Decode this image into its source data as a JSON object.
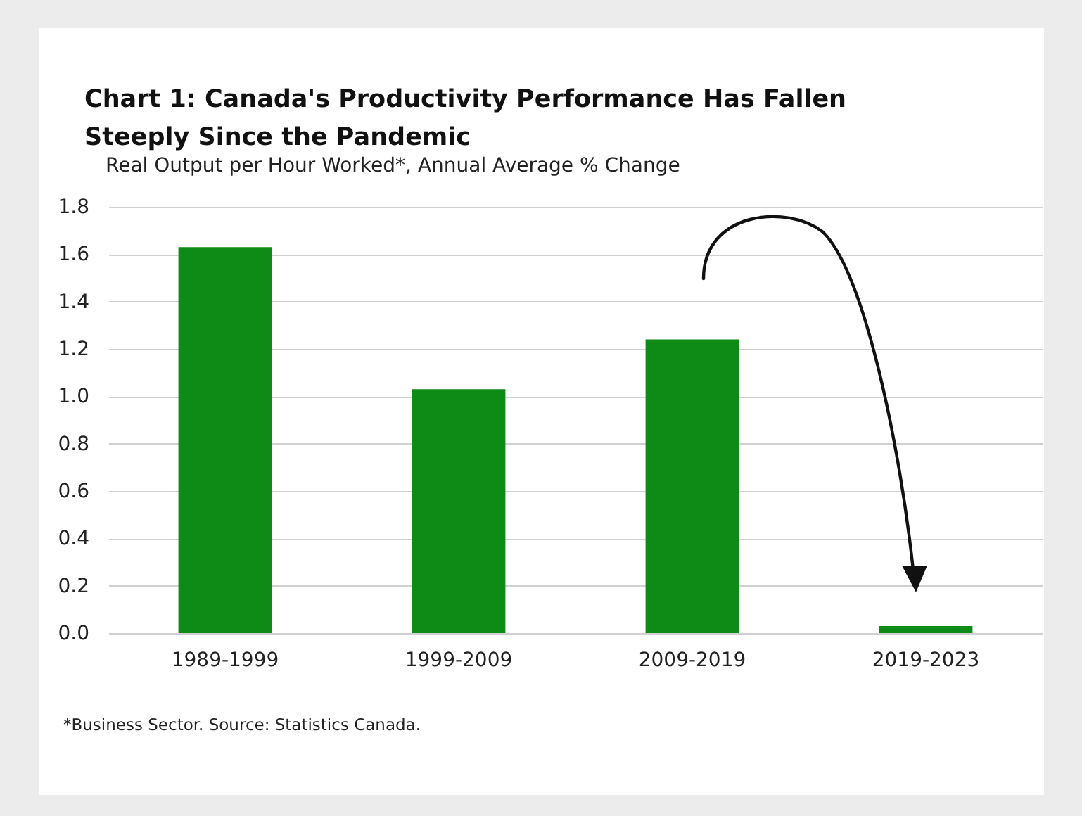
{
  "chart_data": {
    "type": "bar",
    "title": "Chart 1: Canada's Productivity Performance Has Fallen Steeply Since the Pandemic",
    "subtitle": "Real Output per Hour Worked*, Annual Average % Change",
    "categories": [
      "1989-1999",
      "1999-2009",
      "2009-2019",
      "2019-2023"
    ],
    "values": [
      1.63,
      1.03,
      1.24,
      0.03
    ],
    "color": "#0e8a16",
    "ylim": [
      0,
      1.8
    ],
    "yticks": [
      {
        "value": 0,
        "label": "0.0"
      },
      {
        "value": 0.2,
        "label": "0.2"
      },
      {
        "value": 0.4,
        "label": "0.4"
      },
      {
        "value": 0.6,
        "label": "0.6"
      },
      {
        "value": 0.8,
        "label": "0.8"
      },
      {
        "value": 1,
        "label": "1.0"
      },
      {
        "value": 1.2,
        "label": "1.2"
      },
      {
        "value": 1.4,
        "label": "1.4"
      },
      {
        "value": 1.6,
        "label": "1.6"
      },
      {
        "value": 1.8,
        "label": "1.8"
      }
    ],
    "grid": "y",
    "annotations": [
      "*Business Sector. Source: Statistics Canada."
    ]
  }
}
